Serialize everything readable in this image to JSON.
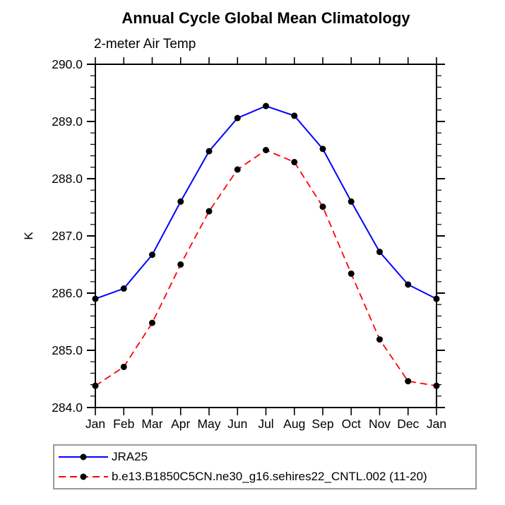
{
  "chart_data": {
    "type": "line",
    "title": "Annual Cycle Global Mean Climatology",
    "subtitle": "2-meter Air Temp",
    "ylabel": "K",
    "x_categories": [
      "Jan",
      "Feb",
      "Mar",
      "Apr",
      "May",
      "Jun",
      "Jul",
      "Aug",
      "Sep",
      "Oct",
      "Nov",
      "Dec",
      "Jan"
    ],
    "ylim": [
      284.0,
      290.0
    ],
    "ytick_labels": [
      "290.0",
      "289.0",
      "288.0",
      "287.0",
      "286.0",
      "285.0",
      "284.0"
    ],
    "ytick_major_interval": 1.0,
    "ytick_minor_interval": 0.2,
    "grid": false,
    "legend_position": "bottom-left",
    "series": [
      {
        "name": "JRA25",
        "color": "#0000ff",
        "line_style": "solid",
        "marker": "filled-circle",
        "marker_color": "#000000",
        "values": [
          285.9,
          286.08,
          286.67,
          287.6,
          288.48,
          289.06,
          289.27,
          289.1,
          288.52,
          287.6,
          286.72,
          286.15,
          285.9
        ]
      },
      {
        "name": "b.e13.B1850C5CN.ne30_g16.sehires22_CNTL.002 (11-20)",
        "color": "#ff0000",
        "line_style": "dashed",
        "marker": "filled-circle",
        "marker_color": "#000000",
        "values": [
          284.38,
          284.71,
          285.48,
          286.5,
          287.43,
          288.16,
          288.5,
          288.29,
          287.51,
          286.34,
          285.19,
          284.46,
          284.38
        ]
      }
    ]
  }
}
